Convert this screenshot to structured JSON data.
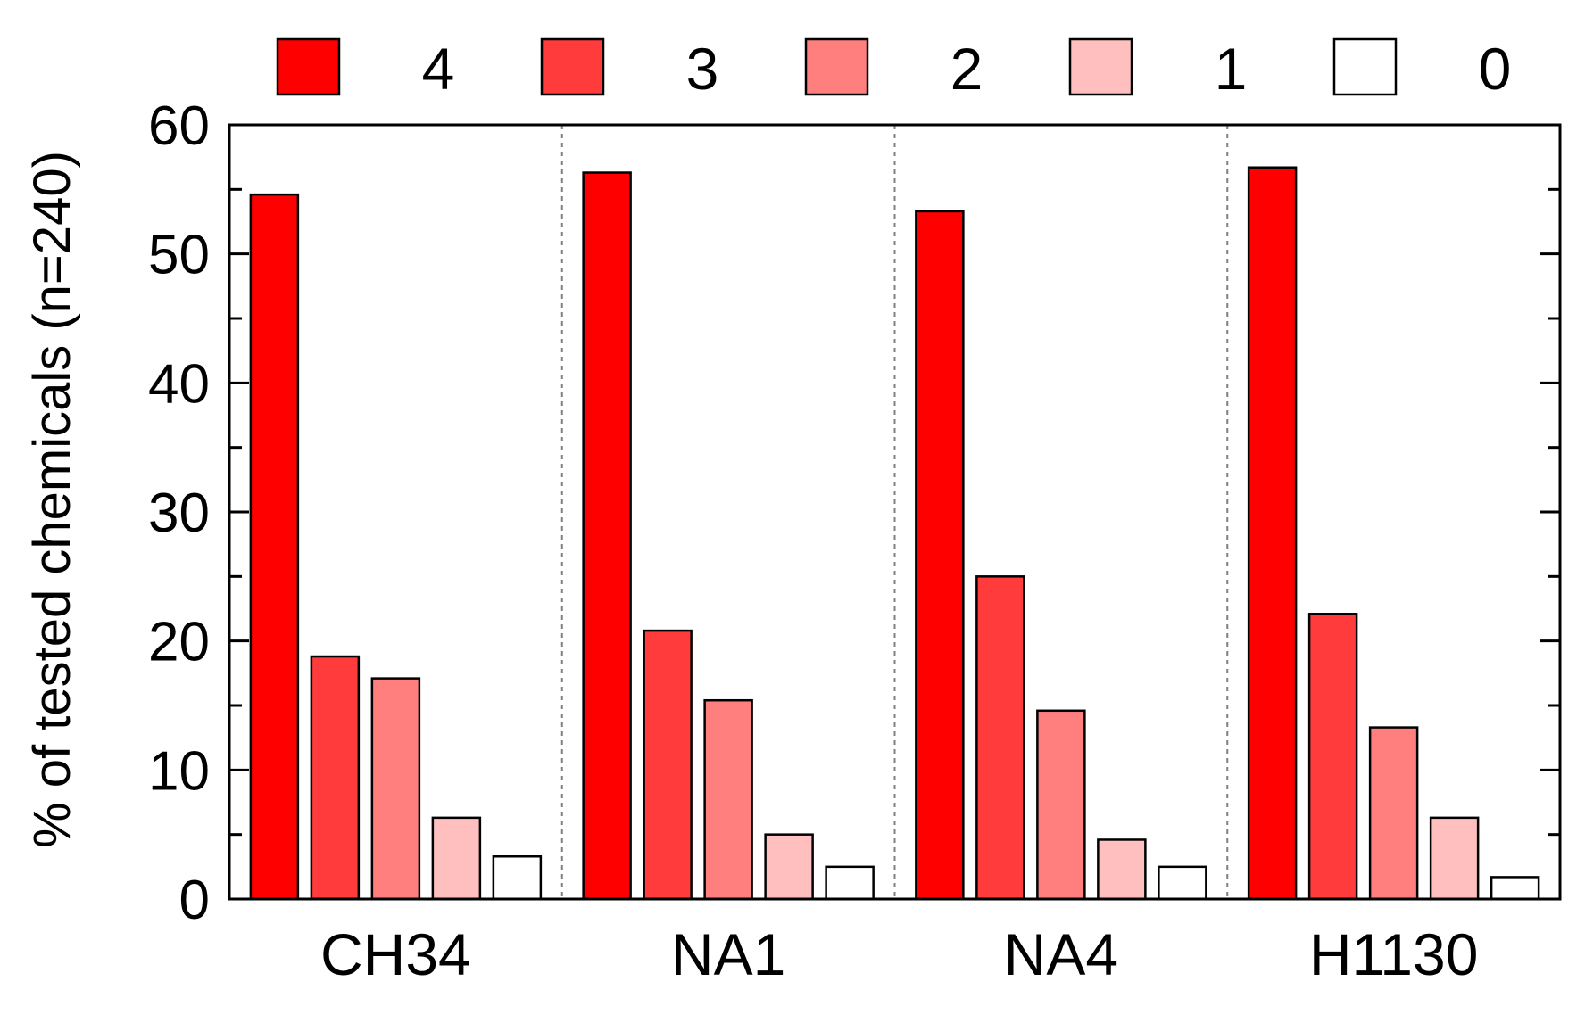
{
  "chart_data": {
    "type": "bar",
    "title": "",
    "xlabel": "",
    "ylabel": "% of tested chemicals (n=240)",
    "categories": [
      "CH34",
      "NA1",
      "NA4",
      "H1130"
    ],
    "series": [
      {
        "name": "4",
        "color": "#ff0000",
        "values": [
          54.6,
          56.3,
          53.3,
          56.7
        ]
      },
      {
        "name": "3",
        "color": "#ff3b3b",
        "values": [
          18.8,
          20.8,
          25.0,
          22.1
        ]
      },
      {
        "name": "2",
        "color": "#ff7f7f",
        "values": [
          17.1,
          15.4,
          14.6,
          13.3
        ]
      },
      {
        "name": "1",
        "color": "#ffbfbf",
        "values": [
          6.3,
          5.0,
          4.6,
          6.3
        ]
      },
      {
        "name": "0",
        "color": "#ffffff",
        "values": [
          3.3,
          2.5,
          2.5,
          1.7
        ]
      }
    ],
    "ylim": [
      0,
      60
    ],
    "yticks": [
      "0",
      "10",
      "20",
      "30",
      "40",
      "50",
      "60"
    ],
    "legend_position": "top",
    "grid": false,
    "group_separators": "dashed"
  }
}
